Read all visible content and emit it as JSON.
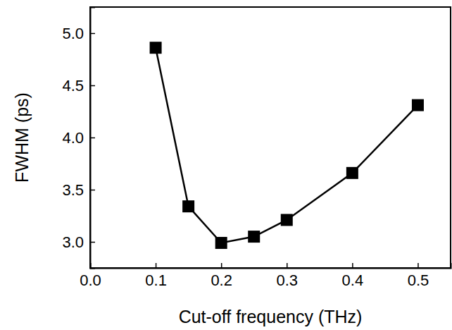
{
  "chart_data": {
    "type": "line",
    "x_label": "Cut-off frequency (THz)",
    "y_label": "FWHM (ps)",
    "x": [
      0.1,
      0.15,
      0.2,
      0.25,
      0.3,
      0.4,
      0.5
    ],
    "series": [
      {
        "name": "FWHM",
        "color": "#000000",
        "marker": "square",
        "line_style": "solid",
        "values": [
          4.86,
          3.34,
          2.99,
          3.05,
          3.21,
          3.66,
          4.31
        ]
      }
    ],
    "xlim": [
      0,
      0.55
    ],
    "xticks": [
      {
        "value": 0,
        "label": "0.0"
      },
      0.1,
      0.2,
      0.3,
      0.4,
      0.5
    ],
    "ylim": [
      2.75,
      5.25
    ],
    "yticks": [
      {
        "value": 3,
        "label": "3.0"
      },
      3.5,
      {
        "value": 4,
        "label": "4.0"
      },
      4.5,
      {
        "value": 5,
        "label": "5.0"
      }
    ],
    "grid": false
  }
}
